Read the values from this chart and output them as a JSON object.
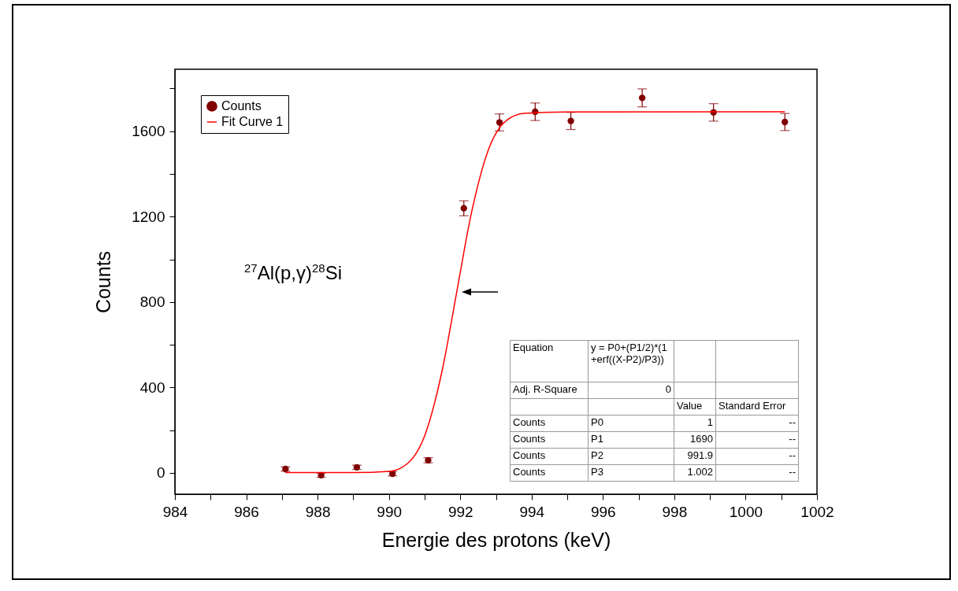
{
  "chart_data": {
    "type": "scatter",
    "xlabel": "Energie des protons (keV)",
    "ylabel": "Counts",
    "xlim": [
      984,
      1002
    ],
    "xticks": [
      984,
      {
        "value": 985,
        "label": null
      },
      986,
      {
        "value": 987,
        "label": null
      },
      988,
      {
        "value": 989,
        "label": null
      },
      990,
      {
        "value": 991,
        "label": null
      },
      992,
      {
        "value": 993,
        "label": null
      },
      994,
      {
        "value": 995,
        "label": null
      },
      996,
      {
        "value": 997,
        "label": null
      },
      998,
      {
        "value": 999,
        "label": null
      },
      1000,
      {
        "value": 1001,
        "label": null
      },
      1002
    ],
    "ylim": [
      -100,
      1890
    ],
    "yticks": [
      0,
      {
        "value": 200,
        "label": null
      },
      400,
      {
        "value": 600,
        "label": null
      },
      800,
      {
        "value": 1000,
        "label": null
      },
      1200,
      {
        "value": 1400,
        "label": null
      },
      1600,
      {
        "value": 1800,
        "label": null
      }
    ],
    "legend": "top left",
    "series": [
      {
        "name": "Counts",
        "marker": "circle",
        "color": "#800000",
        "x": [
          987.1,
          988.1,
          989.1,
          990.1,
          991.1,
          992.1,
          993.1,
          994.1,
          995.1,
          997.1,
          999.1,
          1001.1
        ],
        "values": [
          18,
          -11,
          26,
          -4,
          59,
          1239,
          1641,
          1691,
          1648,
          1756,
          1688,
          1643
        ],
        "errors": [
          10,
          10,
          10,
          10,
          12,
          35,
          40,
          41,
          40,
          42,
          41,
          40
        ]
      },
      {
        "name": "Fit Curve 1",
        "type": "line",
        "color": "#ff0000",
        "x": [
          987.1,
          989,
          990,
          990.5,
          991,
          991.5,
          991.9,
          992.3,
          992.8,
          993.3,
          993.8,
          995,
          1001.1
        ],
        "values": [
          1,
          1,
          7,
          41,
          173,
          485,
          846,
          1207,
          1518,
          1651,
          1684,
          1690,
          1691
        ]
      }
    ],
    "annotations": [
      "$^{27}$Al(p,γ)$^{28}$Si",
      "Equation",
      "y = P0+(P1/2)*(1+erf((X-P2)/P3))",
      "Adj. R-Square",
      "0",
      "Value",
      "Standard Error",
      "Counts",
      "P0",
      "1",
      "--",
      "Counts",
      "P1",
      "1690",
      "--",
      "Counts",
      "P2",
      "991.9",
      "--",
      "Counts",
      "P3",
      "1.002",
      "--"
    ]
  }
}
